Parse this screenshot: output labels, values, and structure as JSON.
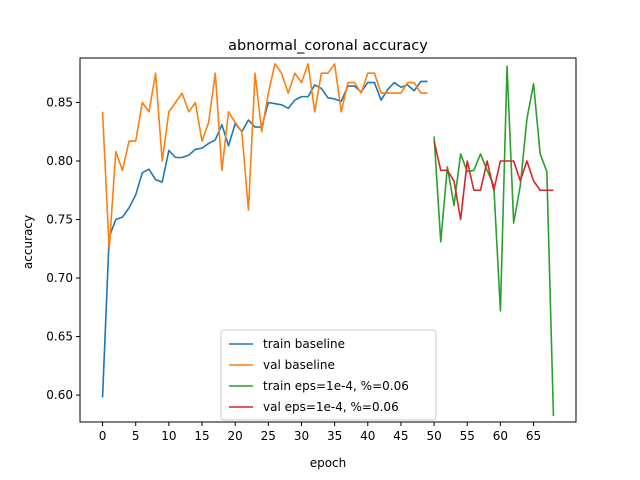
{
  "chart_data": {
    "type": "line",
    "title": "abnormal_coronal accuracy",
    "xlabel": "epoch",
    "ylabel": "accuracy",
    "xlim": [
      -3.4,
      71.4
    ],
    "ylim": [
      0.577,
      0.888
    ],
    "xticks": [
      0,
      5,
      10,
      15,
      20,
      25,
      30,
      35,
      40,
      45,
      50,
      55,
      60,
      65
    ],
    "yticks": [
      0.6,
      0.65,
      0.7,
      0.75,
      0.8,
      0.85
    ],
    "grid": false,
    "legend_position": "lower center",
    "series": [
      {
        "name": "train baseline",
        "color": "#1f77b4",
        "x": [
          0,
          1,
          2,
          3,
          4,
          5,
          6,
          7,
          8,
          9,
          10,
          11,
          12,
          13,
          14,
          15,
          16,
          17,
          18,
          19,
          20,
          21,
          22,
          23,
          24,
          25,
          26,
          27,
          28,
          29,
          30,
          31,
          32,
          33,
          34,
          35,
          36,
          37,
          38,
          39,
          40,
          41,
          42,
          43,
          44,
          45,
          46,
          47,
          48,
          49
        ],
        "y": [
          0.598,
          0.735,
          0.75,
          0.752,
          0.76,
          0.771,
          0.79,
          0.793,
          0.784,
          0.782,
          0.809,
          0.803,
          0.803,
          0.805,
          0.81,
          0.811,
          0.815,
          0.818,
          0.831,
          0.813,
          0.832,
          0.825,
          0.835,
          0.829,
          0.829,
          0.85,
          0.849,
          0.848,
          0.845,
          0.852,
          0.855,
          0.855,
          0.865,
          0.862,
          0.854,
          0.853,
          0.851,
          0.864,
          0.864,
          0.859,
          0.867,
          0.867,
          0.852,
          0.861,
          0.867,
          0.863,
          0.865,
          0.86,
          0.868,
          0.868
        ]
      },
      {
        "name": "val baseline",
        "color": "#ff7f0e",
        "x": [
          0,
          1,
          2,
          3,
          4,
          5,
          6,
          7,
          8,
          9,
          10,
          11,
          12,
          13,
          14,
          15,
          16,
          17,
          18,
          19,
          20,
          21,
          22,
          23,
          24,
          25,
          26,
          27,
          28,
          29,
          30,
          31,
          32,
          33,
          34,
          35,
          36,
          37,
          38,
          39,
          40,
          41,
          42,
          43,
          44,
          45,
          46,
          47,
          48,
          49
        ],
        "y": [
          0.842,
          0.725,
          0.808,
          0.792,
          0.817,
          0.817,
          0.85,
          0.842,
          0.875,
          0.8,
          0.842,
          0.85,
          0.858,
          0.842,
          0.85,
          0.817,
          0.833,
          0.875,
          0.792,
          0.842,
          0.833,
          0.825,
          0.758,
          0.875,
          0.825,
          0.858,
          0.883,
          0.875,
          0.858,
          0.875,
          0.867,
          0.883,
          0.842,
          0.875,
          0.875,
          0.883,
          0.842,
          0.867,
          0.867,
          0.858,
          0.875,
          0.875,
          0.858,
          0.858,
          0.858,
          0.858,
          0.867,
          0.867,
          0.858,
          0.858
        ]
      },
      {
        "name": "train eps=1e-4, %=0.06",
        "color": "#2ca02c",
        "x": [
          50,
          51,
          52,
          53,
          54,
          55,
          56,
          57,
          58,
          59,
          60,
          61,
          62,
          63,
          64,
          65,
          66,
          67,
          68
        ],
        "y": [
          0.821,
          0.731,
          0.795,
          0.762,
          0.806,
          0.791,
          0.792,
          0.806,
          0.792,
          0.779,
          0.672,
          0.881,
          0.747,
          0.779,
          0.836,
          0.866,
          0.806,
          0.791,
          0.582
        ]
      },
      {
        "name": "val eps=1e-4, %=0.06",
        "color": "#d62728",
        "x": [
          50,
          51,
          52,
          53,
          54,
          55,
          56,
          57,
          58,
          59,
          60,
          61,
          62,
          63,
          64,
          65,
          66,
          67,
          68
        ],
        "y": [
          0.817,
          0.792,
          0.792,
          0.783,
          0.75,
          0.8,
          0.775,
          0.775,
          0.8,
          0.775,
          0.8,
          0.8,
          0.8,
          0.783,
          0.8,
          0.783,
          0.775,
          0.775,
          0.775
        ]
      }
    ]
  }
}
